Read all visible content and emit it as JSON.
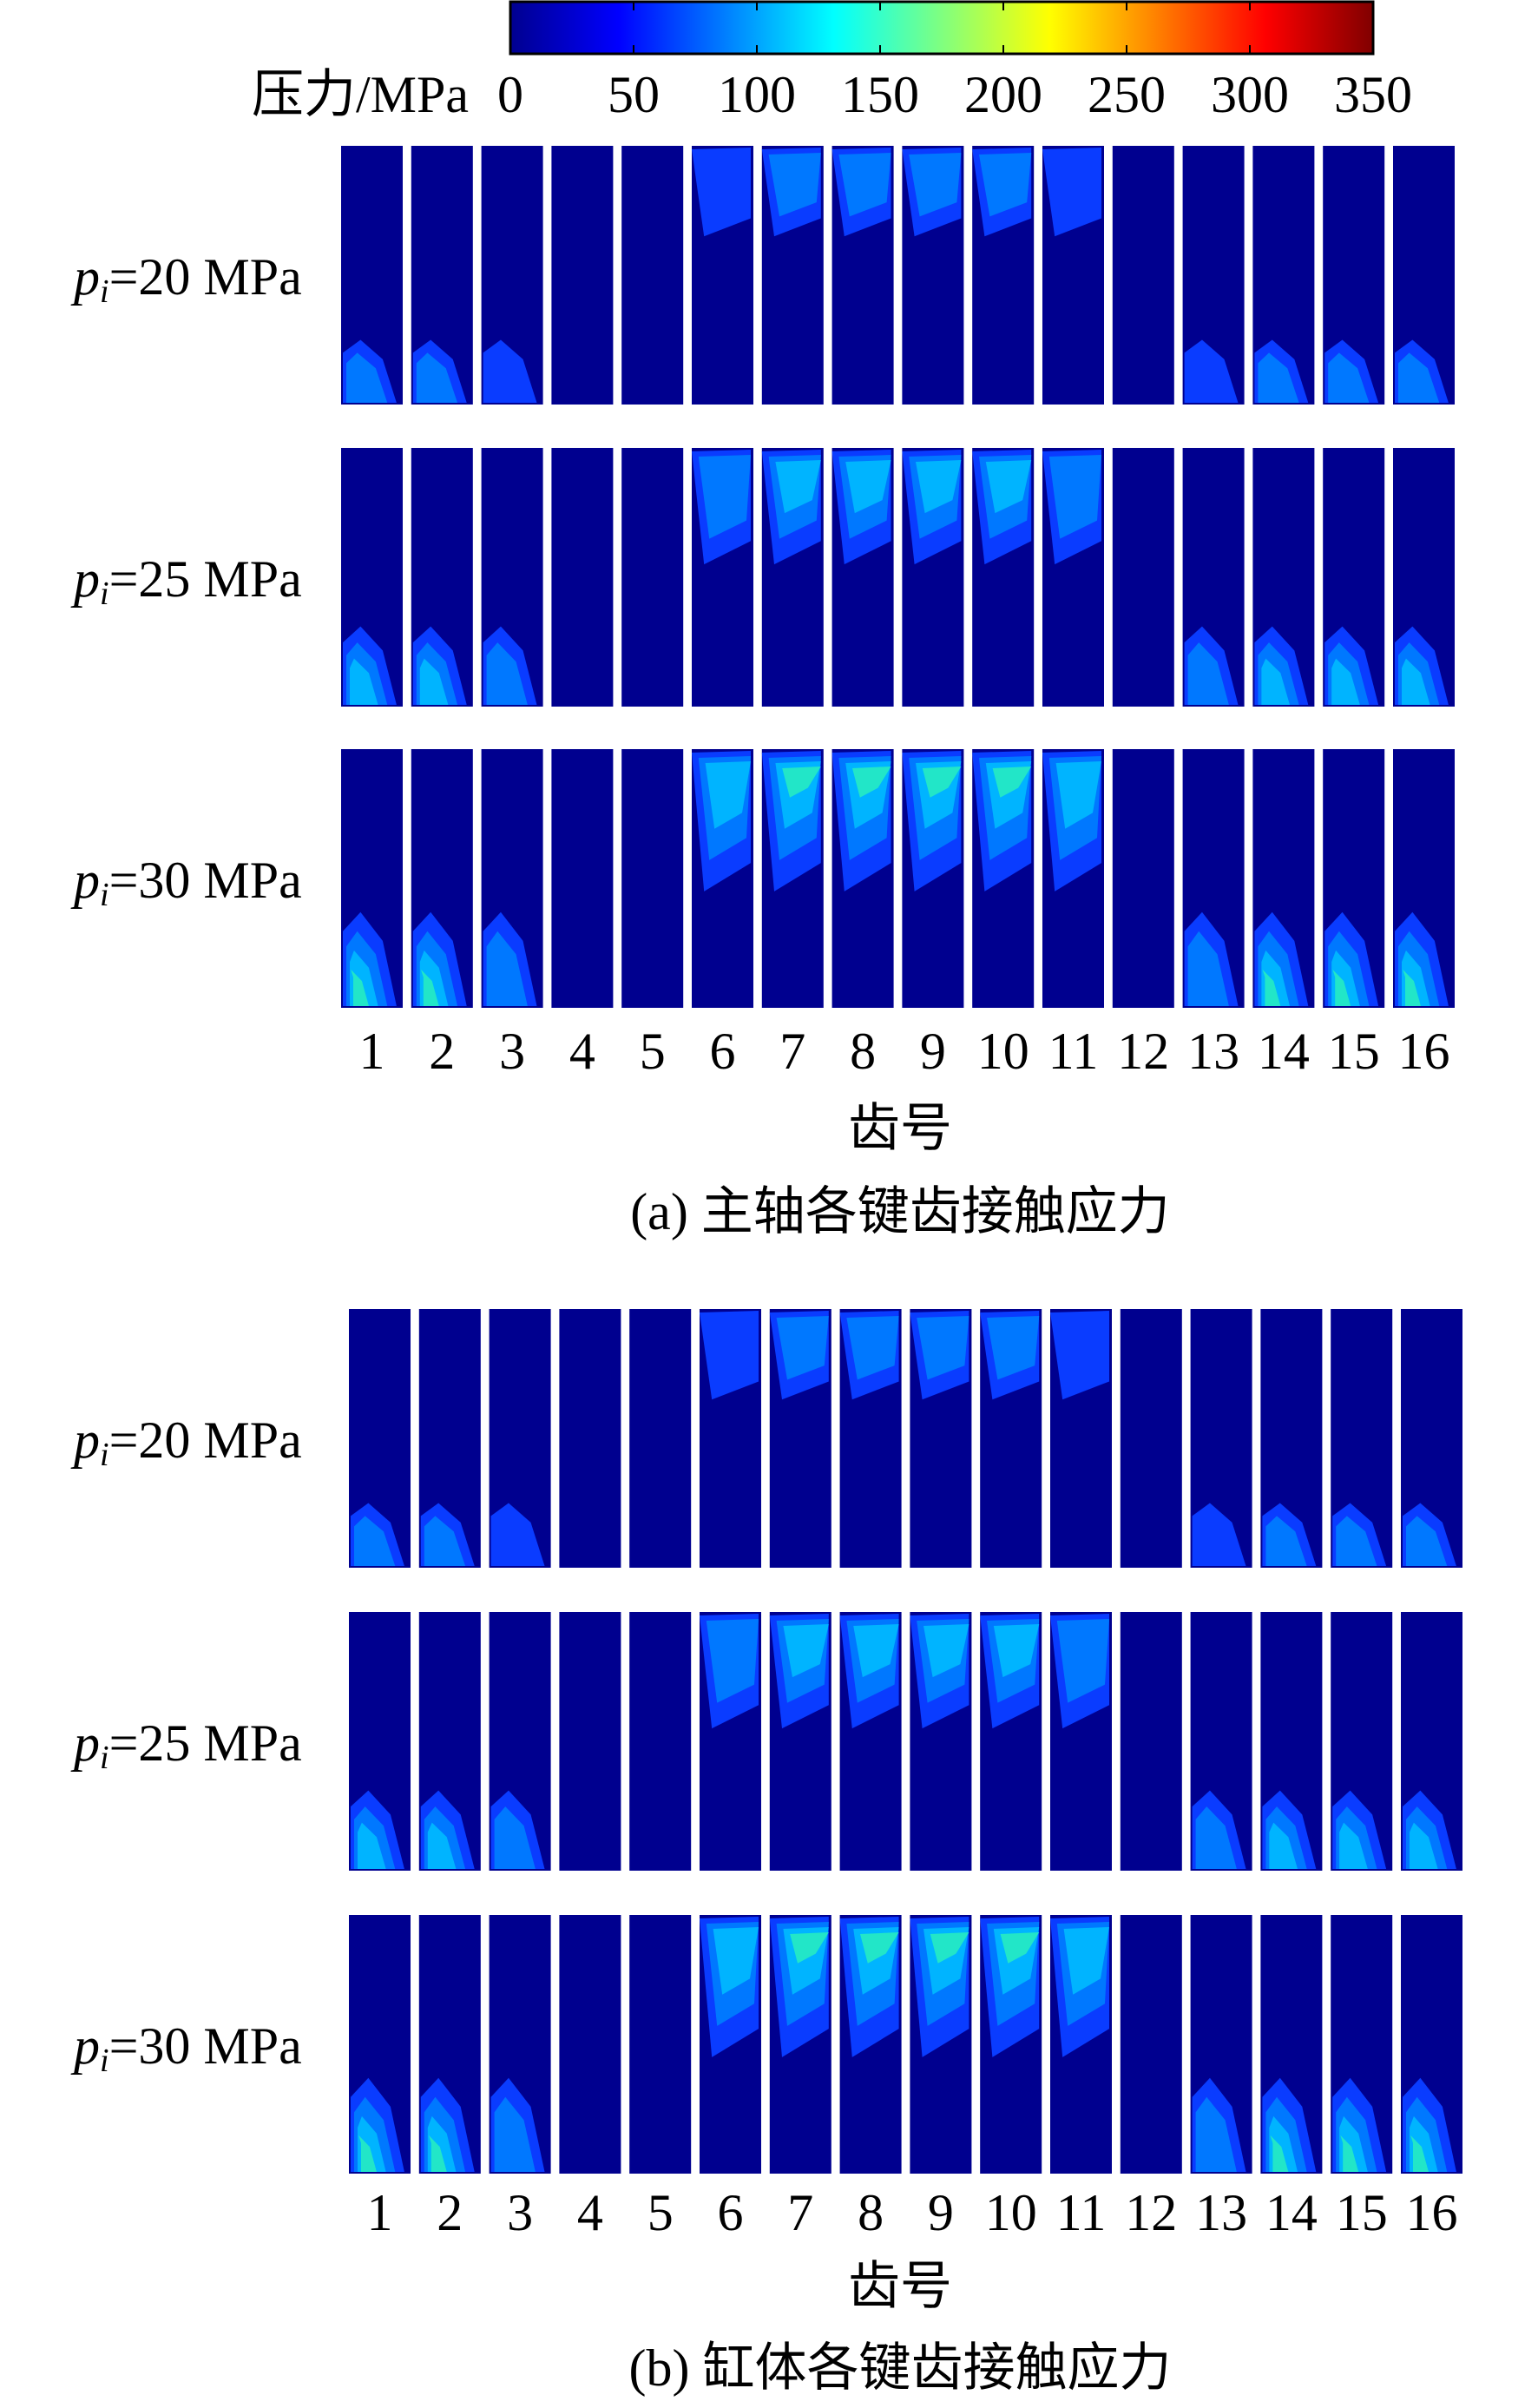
{
  "chart_data": [
    {
      "type": "contour-grid",
      "title": "(a) 主轴各键齿接触应力",
      "xlabel": "齿号",
      "categories": [
        "1",
        "2",
        "3",
        "4",
        "5",
        "6",
        "7",
        "8",
        "9",
        "10",
        "11",
        "12",
        "13",
        "14",
        "15",
        "16"
      ],
      "rows": [
        {
          "var": "p",
          "sub": "i",
          "text": "=20 MPa"
        },
        {
          "var": "p",
          "sub": "i",
          "text": "=25 MPa"
        },
        {
          "var": "p",
          "sub": "i",
          "text": "=30 MPa"
        }
      ],
      "colorbar": {
        "label": "压力/MPa",
        "lim": [
          0,
          350
        ],
        "ticks": [
          0,
          50,
          100,
          150,
          200,
          250,
          300,
          350
        ],
        "colormap": "jet"
      }
    },
    {
      "type": "contour-grid",
      "title": "(b) 缸体各键齿接触应力",
      "xlabel": "齿号",
      "categories": [
        "1",
        "2",
        "3",
        "4",
        "5",
        "6",
        "7",
        "8",
        "9",
        "10",
        "11",
        "12",
        "13",
        "14",
        "15",
        "16"
      ],
      "rows": [
        {
          "var": "p",
          "sub": "i",
          "text": "=20 MPa"
        },
        {
          "var": "p",
          "sub": "i",
          "text": "=25 MPa"
        },
        {
          "var": "p",
          "sub": "i",
          "text": "=30 MPa"
        }
      ]
    }
  ]
}
